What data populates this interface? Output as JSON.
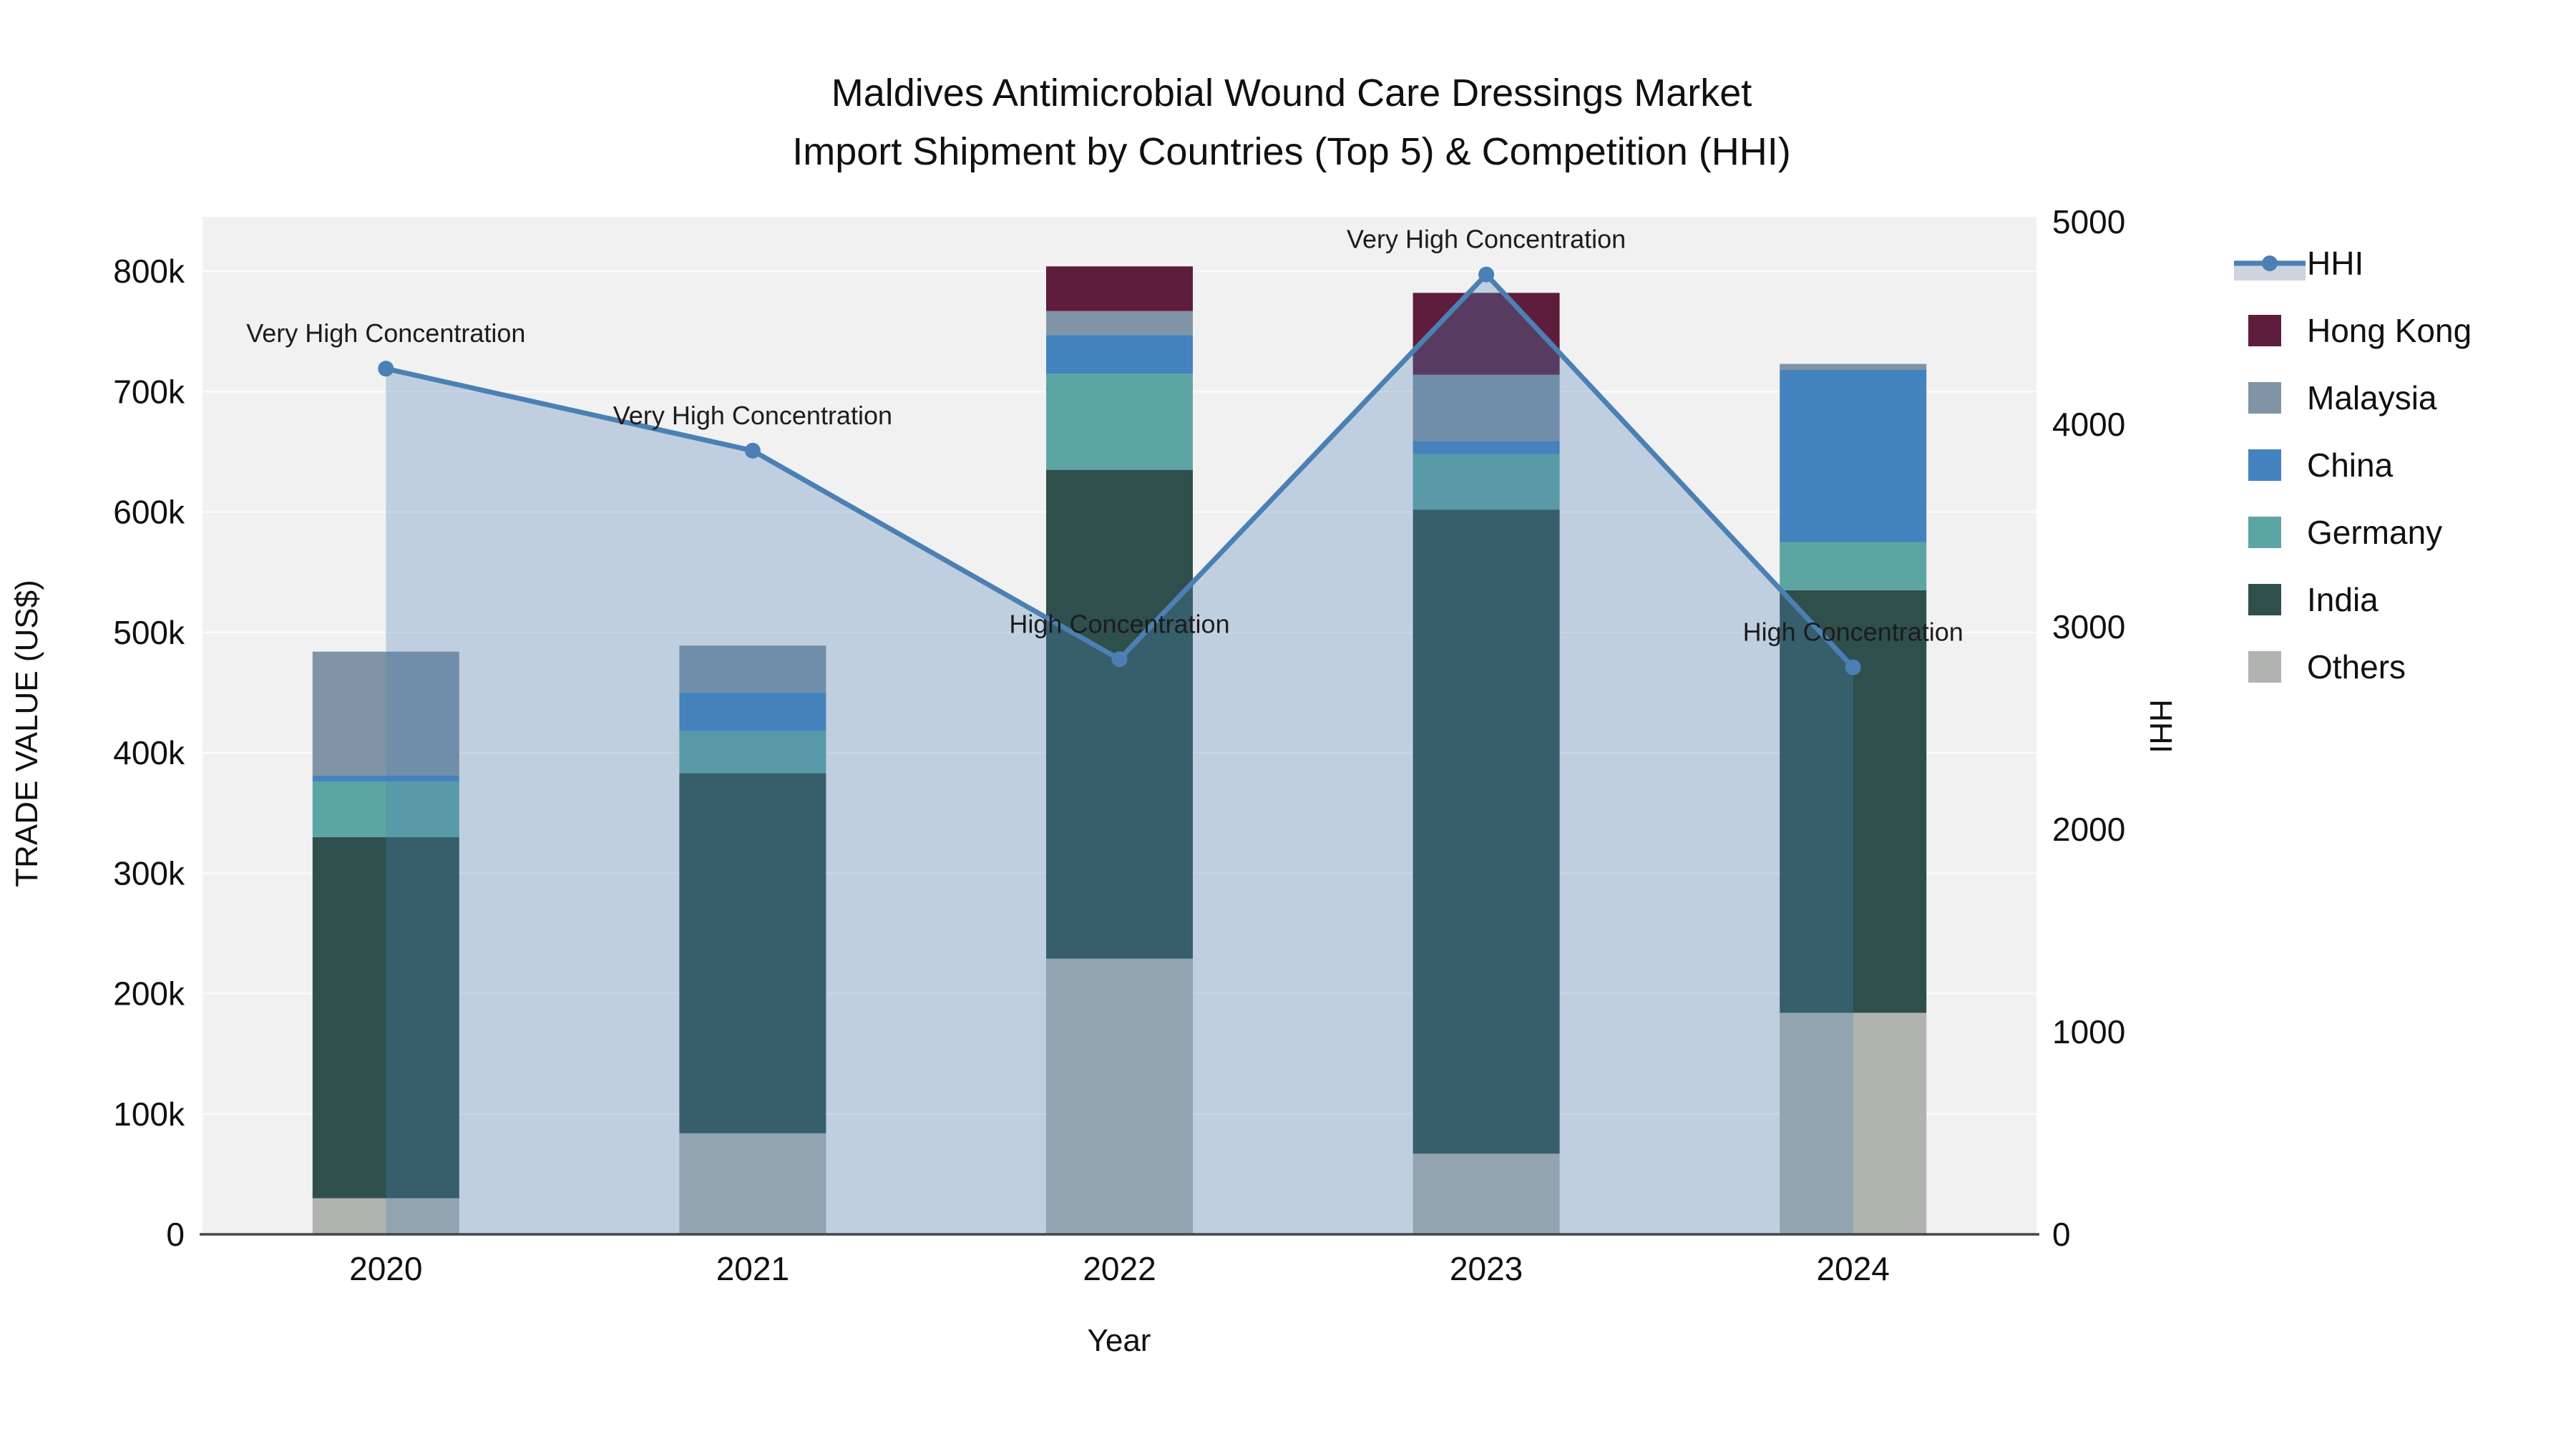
{
  "title": {
    "line1": "Maldives Antimicrobial Wound Care Dressings Market",
    "line2": "Import Shipment by Countries (Top 5) & Competition (HHI)"
  },
  "chart_data": {
    "type": "combo: stacked bar (trade value) + line (HHI, secondary axis)",
    "categories": [
      "2020",
      "2021",
      "2022",
      "2023",
      "2024"
    ],
    "x_axis": {
      "title": "Year"
    },
    "left_axis": {
      "title": "TRADE VALUE (US$)",
      "tick_values": [
        0,
        100000,
        200000,
        300000,
        400000,
        500000,
        600000,
        700000,
        800000
      ],
      "tick_labels": [
        "0",
        "100k",
        "200k",
        "300k",
        "400k",
        "500k",
        "600k",
        "700k",
        "800k"
      ]
    },
    "right_axis": {
      "title": "HHI",
      "tick_values": [
        0,
        1000,
        2000,
        3000,
        4000,
        5000
      ],
      "tick_labels": [
        "0",
        "1000",
        "2000",
        "3000",
        "4000",
        "5000"
      ],
      "range": [
        0,
        5000
      ]
    },
    "series": [
      {
        "name": "Others",
        "color": "#b0b3af",
        "values": [
          30000,
          84000,
          229000,
          67000,
          184000
        ]
      },
      {
        "name": "India",
        "color": "#2f4f4c",
        "values": [
          300000,
          299000,
          406000,
          535000,
          351000
        ]
      },
      {
        "name": "Germany",
        "color": "#5da5a2",
        "values": [
          46000,
          35000,
          80000,
          46000,
          40000
        ]
      },
      {
        "name": "China",
        "color": "#4483bf",
        "values": [
          5000,
          32000,
          32000,
          11000,
          143000
        ]
      },
      {
        "name": "Malaysia",
        "color": "#8094a6",
        "values": [
          103000,
          39000,
          20000,
          55000,
          5000
        ]
      },
      {
        "name": "Hong Kong",
        "color": "#5e1d3d",
        "values": [
          0,
          0,
          37000,
          68000,
          0
        ]
      }
    ],
    "bar_totals": [
      484000,
      489000,
      804000,
      782000,
      723000
    ],
    "line": {
      "name": "HHI",
      "color": "#4c80b4",
      "fill": "rgba(76,128,180,0.30)",
      "values": [
        4275,
        3870,
        2840,
        4740,
        2800
      ]
    },
    "annotations": [
      {
        "year": "2020",
        "text": "Very High Concentration"
      },
      {
        "year": "2021",
        "text": "Very High Concentration"
      },
      {
        "year": "2022",
        "text": "High Concentration"
      },
      {
        "year": "2023",
        "text": "Very High Concentration"
      },
      {
        "year": "2024",
        "text": "High Concentration"
      }
    ]
  },
  "legend": {
    "items": [
      {
        "label": "HHI",
        "type": "line",
        "color": "#4c80b4"
      },
      {
        "label": "Hong Kong",
        "type": "swatch",
        "color": "#5e1d3d"
      },
      {
        "label": "Malaysia",
        "type": "swatch",
        "color": "#8094a6"
      },
      {
        "label": "China",
        "type": "swatch",
        "color": "#4483bf"
      },
      {
        "label": "Germany",
        "type": "swatch",
        "color": "#5da5a2"
      },
      {
        "label": "India",
        "type": "swatch",
        "color": "#2f4f4c"
      },
      {
        "label": "Others",
        "type": "swatch",
        "color": "#b0b3af"
      }
    ]
  }
}
